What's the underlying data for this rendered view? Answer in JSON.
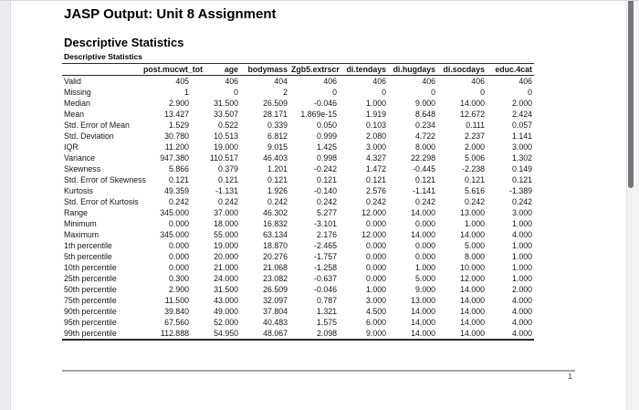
{
  "page": {
    "title": "JASP Output: Unit 8 Assignment",
    "section_heading": "Descriptive Statistics",
    "page_number": "1"
  },
  "table": {
    "title": "Descriptive Statistics",
    "columns": [
      "",
      "post.mucwt_tot",
      "age",
      "bodymass",
      "Zgb5.extrscr",
      "di.tendays",
      "di.hugdays",
      "di.socdays",
      "educ.4cat"
    ],
    "rows": [
      {
        "label": "Valid",
        "values": [
          "405",
          "406",
          "404",
          "406",
          "406",
          "406",
          "406",
          "406"
        ]
      },
      {
        "label": "Missing",
        "values": [
          "1",
          "0",
          "2",
          "0",
          "0",
          "0",
          "0",
          "0"
        ]
      },
      {
        "label": "Median",
        "values": [
          "2.900",
          "31.500",
          "26.509",
          "-0.046",
          "1.000",
          "9.000",
          "14.000",
          "2.000"
        ]
      },
      {
        "label": "Mean",
        "values": [
          "13.427",
          "33.507",
          "28.171",
          "1.869e-15",
          "1.919",
          "8.648",
          "12.672",
          "2.424"
        ]
      },
      {
        "label": "Std. Error of Mean",
        "values": [
          "1.529",
          "0.522",
          "0.339",
          "0.050",
          "0.103",
          "0.234",
          "0.111",
          "0.057"
        ]
      },
      {
        "label": "Std. Deviation",
        "values": [
          "30.780",
          "10.513",
          "6.812",
          "0.999",
          "2.080",
          "4.722",
          "2.237",
          "1.141"
        ]
      },
      {
        "label": "IQR",
        "values": [
          "11.200",
          "19.000",
          "9.015",
          "1.425",
          "3.000",
          "8.000",
          "2.000",
          "3.000"
        ]
      },
      {
        "label": "Variance",
        "values": [
          "947.380",
          "110.517",
          "46.403",
          "0.998",
          "4.327",
          "22.298",
          "5.006",
          "1.302"
        ]
      },
      {
        "label": "Skewness",
        "values": [
          "5.866",
          "0.379",
          "1.201",
          "-0.242",
          "1.472",
          "-0.445",
          "-2.238",
          "0.149"
        ]
      },
      {
        "label": "Std. Error of Skewness",
        "values": [
          "0.121",
          "0.121",
          "0.121",
          "0.121",
          "0.121",
          "0.121",
          "0.121",
          "0.121"
        ]
      },
      {
        "label": "Kurtosis",
        "values": [
          "49.359",
          "-1.131",
          "1.926",
          "-0.140",
          "2.576",
          "-1.141",
          "5.616",
          "-1.389"
        ]
      },
      {
        "label": "Std. Error of Kurtosis",
        "values": [
          "0.242",
          "0.242",
          "0.242",
          "0.242",
          "0.242",
          "0.242",
          "0.242",
          "0.242"
        ]
      },
      {
        "label": "Range",
        "values": [
          "345.000",
          "37.000",
          "46.302",
          "5.277",
          "12.000",
          "14.000",
          "13.000",
          "3.000"
        ]
      },
      {
        "label": "Minimum",
        "values": [
          "0.000",
          "18.000",
          "16.832",
          "-3.101",
          "0.000",
          "0.000",
          "1.000",
          "1.000"
        ]
      },
      {
        "label": "Maximum",
        "values": [
          "345.000",
          "55.000",
          "63.134",
          "2.176",
          "12.000",
          "14.000",
          "14.000",
          "4.000"
        ]
      },
      {
        "label": "1th percentile",
        "values": [
          "0.000",
          "19.000",
          "18.870",
          "-2.465",
          "0.000",
          "0.000",
          "5.000",
          "1.000"
        ]
      },
      {
        "label": "5th percentile",
        "values": [
          "0.000",
          "20.000",
          "20.276",
          "-1.757",
          "0.000",
          "0.000",
          "8.000",
          "1.000"
        ]
      },
      {
        "label": "10th percentile",
        "values": [
          "0.000",
          "21.000",
          "21.068",
          "-1.258",
          "0.000",
          "1.000",
          "10.000",
          "1.000"
        ]
      },
      {
        "label": "25th percentile",
        "values": [
          "0.300",
          "24.000",
          "23.082",
          "-0.637",
          "0.000",
          "5.000",
          "12.000",
          "1.000"
        ]
      },
      {
        "label": "50th percentile",
        "values": [
          "2.900",
          "31.500",
          "26.509",
          "-0.046",
          "1.000",
          "9.000",
          "14.000",
          "2.000"
        ]
      },
      {
        "label": "75th percentile",
        "values": [
          "11.500",
          "43.000",
          "32.097",
          "0.787",
          "3.000",
          "13.000",
          "14.000",
          "4.000"
        ]
      },
      {
        "label": "90th percentile",
        "values": [
          "39.840",
          "49.000",
          "37.804",
          "1.321",
          "4.500",
          "14.000",
          "14.000",
          "4.000"
        ]
      },
      {
        "label": "95th percentile",
        "values": [
          "67.560",
          "52.000",
          "40.483",
          "1.575",
          "6.000",
          "14.000",
          "14.000",
          "4.000"
        ]
      },
      {
        "label": "99th percentile",
        "values": [
          "112.888",
          "54.950",
          "48.067",
          "2.098",
          "9.000",
          "14.000",
          "14.000",
          "4.000"
        ]
      }
    ]
  }
}
